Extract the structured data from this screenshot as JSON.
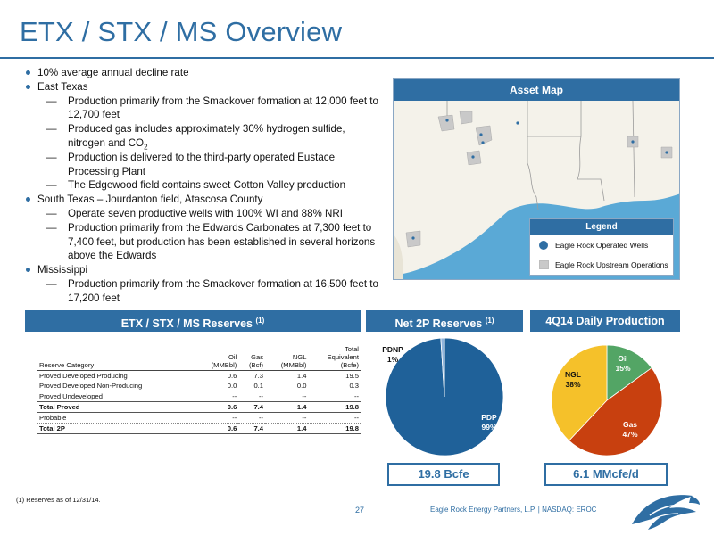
{
  "title": "ETX / STX / MS Overview",
  "bullets": [
    {
      "level": 1,
      "text": "10% average annual decline rate"
    },
    {
      "level": 1,
      "text": "East Texas"
    },
    {
      "level": 2,
      "text": "Production primarily from the Smackover formation at 12,000 feet to 12,700 feet"
    },
    {
      "level": 2,
      "text": "Produced gas includes approximately 30% hydrogen sulfide, nitrogen and CO",
      "sub": "2"
    },
    {
      "level": 2,
      "text": "Production is delivered to the third-party operated Eustace Processing Plant"
    },
    {
      "level": 2,
      "text": "The Edgewood field contains sweet Cotton Valley production"
    },
    {
      "level": 1,
      "text": "South Texas – Jourdanton field, Atascosa County"
    },
    {
      "level": 2,
      "text": "Operate seven productive wells with 100% WI and 88% NRI"
    },
    {
      "level": 2,
      "text": "Production primarily from the Edwards Carbonates at 7,300 feet to 7,400 feet, but production has been established in several horizons above the Edwards"
    },
    {
      "level": 1,
      "text": "Mississippi"
    },
    {
      "level": 2,
      "text": "Production primarily from the Smackover formation at 16,500 feet to 17,200 feet"
    }
  ],
  "map": {
    "header": "Asset Map",
    "legend_title": "Legend",
    "legend_items": [
      {
        "label": "Eagle Rock Operated Wells",
        "icon": "dot-icon"
      },
      {
        "label": "Eagle Rock Upstream Operations",
        "icon": "square-icon"
      }
    ],
    "colors": {
      "water": "#5aa9d6",
      "land": "#f4f2ea",
      "asset": "#c9c9c9"
    }
  },
  "reserves": {
    "header": "ETX / STX / MS Reserves",
    "header_note": "(1)",
    "columns": [
      "Reserve Category",
      "Oil\n(MMBbl)",
      "Gas\n(Bcf)",
      "NGL\n(MMBbl)",
      "Total\nEquivalent\n(Bcfe)"
    ],
    "rows": [
      {
        "cells": [
          "Proved Developed Producing",
          "0.6",
          "7.3",
          "1.4",
          "19.5"
        ],
        "style": ""
      },
      {
        "cells": [
          "Proved Developed Non-Producing",
          "0.0",
          "0.1",
          "0.0",
          "0.3"
        ],
        "style": ""
      },
      {
        "cells": [
          "Proved Undeveloped",
          "--",
          "--",
          "--",
          "--"
        ],
        "style": ""
      },
      {
        "cells": [
          "Total Proved",
          "0.6",
          "7.4",
          "1.4",
          "19.8"
        ],
        "style": "total"
      },
      {
        "cells": [
          "Probable",
          "--",
          "--",
          "--",
          "--"
        ],
        "style": "sep"
      },
      {
        "cells": [
          "Total 2P",
          "0.6",
          "7.4",
          "1.4",
          "19.8"
        ],
        "style": "total2"
      }
    ]
  },
  "net2p": {
    "header": "Net 2P Reserves",
    "header_note": "(1)",
    "callout": "19.8 Bcfe"
  },
  "production": {
    "header": "4Q14 Daily Production",
    "callout": "6.1 MMcfe/d"
  },
  "chart_data": [
    {
      "type": "pie",
      "title": "Net 2P Reserves",
      "categories": [
        "PDP",
        "PDNP"
      ],
      "values": [
        99,
        1
      ],
      "labels": [
        "99%",
        "1%"
      ],
      "colors": [
        "#1f6199",
        "#8fb4dc"
      ]
    },
    {
      "type": "pie",
      "title": "4Q14 Daily Production",
      "categories": [
        "Oil",
        "Gas",
        "NGL"
      ],
      "values": [
        15,
        47,
        38
      ],
      "labels": [
        "15%",
        "47%",
        "38%"
      ],
      "colors": [
        "#53a565",
        "#c8400f",
        "#f5c12a"
      ]
    }
  ],
  "footnote": "(1)    Reserves as of 12/31/14.",
  "page_number": "27",
  "footer": "Eagle Rock Energy Partners, L.P.  |  NASDAQ: EROC"
}
